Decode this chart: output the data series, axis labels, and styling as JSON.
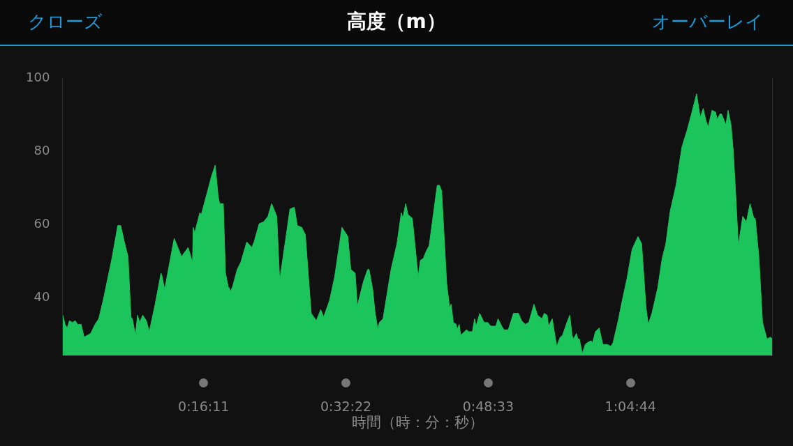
{
  "chart_data": {
    "type": "area",
    "title": "高度（m）",
    "xlabel": "時間（時：分：秒）",
    "annotations": [
      "クローズ",
      "オーバーレイ"
    ],
    "xlim": [
      10,
      4850
    ],
    "ylim": [
      24,
      100
    ],
    "xticks": [
      {
        "value": 971,
        "label": "0:16:11"
      },
      {
        "value": 1942,
        "label": "0:32:22"
      },
      {
        "value": 2913,
        "label": "0:48:33"
      },
      {
        "value": 3884,
        "label": "1:04:44"
      }
    ],
    "yticks": [
      40,
      60,
      80,
      100
    ],
    "series": [
      {
        "color": "#1cc45c",
        "x": [
          10,
          25,
          40,
          55,
          75,
          95,
          110,
          135,
          155,
          200,
          230,
          255,
          285,
          345,
          385,
          405,
          430,
          455,
          475,
          485,
          505,
          520,
          535,
          555,
          580,
          600,
          640,
          680,
          685,
          705,
          770,
          820,
          865,
          895,
          900,
          910,
          945,
          955,
          1025,
          1050,
          1070,
          1080,
          1105,
          1120,
          1140,
          1145,
          1155,
          1170,
          1200,
          1225,
          1265,
          1300,
          1315,
          1350,
          1380,
          1410,
          1435,
          1470,
          1490,
          1560,
          1590,
          1610,
          1640,
          1665,
          1705,
          1740,
          1770,
          1790,
          1830,
          1865,
          1915,
          1955,
          1975,
          2005,
          2020,
          2060,
          2090,
          2100,
          2125,
          2140,
          2160,
          2170,
          2195,
          2250,
          2290,
          2320,
          2330,
          2350,
          2365,
          2395,
          2435,
          2450,
          2470,
          2490,
          2510,
          2565,
          2580,
          2595,
          2630,
          2650,
          2660,
          2675,
          2695,
          2700,
          2715,
          2725,
          2765,
          2780,
          2805,
          2820,
          2830,
          2855,
          2885,
          2910,
          2930,
          2965,
          2980,
          3005,
          3020,
          3050,
          3085,
          3120,
          3140,
          3165,
          3190,
          3225,
          3250,
          3280,
          3295,
          3315,
          3325,
          3350,
          3380,
          3405,
          3420,
          3450,
          3470,
          3485,
          3495,
          3515,
          3525,
          3535,
          3555,
          3575,
          3590,
          3615,
          3625,
          3645,
          3670,
          3695,
          3725,
          3750,
          3765,
          3800,
          3825,
          3860,
          3895,
          3935,
          3960,
          3990,
          4005,
          4030,
          4070,
          4100,
          4125,
          4155,
          4195,
          4235,
          4270,
          4300,
          4335,
          4360,
          4380,
          4400,
          4415,
          4440,
          4465,
          4475,
          4495,
          4505,
          4535,
          4550,
          4570,
          4585,
          4600,
          4620,
          4650,
          4675,
          4700,
          4725,
          4735,
          4760,
          4785,
          4815,
          4840,
          4850
        ],
        "values": [
          35,
          32.5,
          31.5,
          33.5,
          33,
          33.5,
          32.5,
          32.5,
          29,
          30,
          32.5,
          34,
          39,
          50.5,
          59.5,
          59.5,
          55,
          51,
          34.5,
          34,
          29.5,
          35,
          33,
          35,
          33.5,
          30.5,
          38,
          46.5,
          46,
          42,
          56,
          51,
          53.5,
          49.5,
          59,
          57.5,
          63,
          62.5,
          73,
          76,
          67.5,
          65.5,
          65.5,
          46.5,
          42.5,
          42.5,
          41.5,
          43,
          47.5,
          49.5,
          55,
          53.5,
          55,
          60,
          60.5,
          62,
          65.5,
          62,
          44.5,
          64,
          64.5,
          59.5,
          59,
          57,
          35.5,
          33.5,
          36.5,
          34.5,
          39,
          45.5,
          59,
          56.5,
          47.5,
          46.5,
          37.5,
          44,
          47.5,
          47.5,
          42,
          36,
          31,
          33,
          34,
          47.5,
          54.5,
          63,
          61.5,
          65.5,
          62.5,
          61.5,
          45.5,
          50,
          50.5,
          52.5,
          54,
          70.5,
          70.5,
          69,
          43.5,
          37,
          38,
          33,
          32.5,
          31,
          32.5,
          29.5,
          31,
          30.5,
          30.5,
          34,
          32,
          35.5,
          33,
          33,
          32,
          32,
          34,
          32,
          31,
          31,
          35.5,
          35.5,
          33.5,
          32.5,
          33,
          38,
          35,
          34,
          35.5,
          35,
          32,
          34,
          26.5,
          29,
          29.5,
          33,
          35,
          29.5,
          28.5,
          30,
          28.5,
          28.5,
          24.5,
          27,
          27.5,
          28,
          27.5,
          30.5,
          31.5,
          27,
          27,
          26.5,
          27.5,
          33.5,
          38.5,
          45,
          53,
          56.5,
          54.5,
          37,
          32.5,
          35.5,
          42.5,
          50.5,
          54.5,
          63.5,
          70.5,
          81,
          85.5,
          90,
          95.5,
          89,
          91.5,
          88,
          86.5,
          91,
          90.5,
          88.5,
          90,
          90,
          87,
          91,
          87,
          80,
          69.5,
          54,
          62,
          60.5,
          65.5,
          61.5,
          61.5,
          51,
          33,
          28.5,
          29,
          28.5
        ]
      }
    ]
  }
}
